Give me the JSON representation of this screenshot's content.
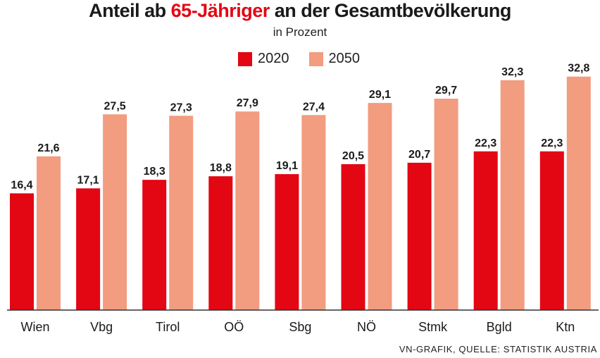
{
  "title_pre": "Anteil ab ",
  "title_hl": "65-Jähriger",
  "title_post": " an der Gesamtbevölkerung",
  "subtitle": "in Prozent",
  "source": "VN-GRAFIK, QUELLE: STATISTIK AUSTRIA",
  "colors": {
    "s2020": "#e30613",
    "s2050": "#f29c80",
    "accent": "#e30613"
  },
  "chart_data": {
    "type": "bar",
    "title": "Anteil ab 65-Jähriger an der Gesamtbevölkerung",
    "subtitle": "in Prozent",
    "categories": [
      "Wien",
      "Vbg",
      "Tirol",
      "OÖ",
      "Sbg",
      "NÖ",
      "Stmk",
      "Bgld",
      "Ktn"
    ],
    "series": [
      {
        "name": "2020",
        "values": [
          16.4,
          17.1,
          18.3,
          18.8,
          19.1,
          20.5,
          20.7,
          22.3,
          22.3
        ],
        "labels": [
          "16,4",
          "17,1",
          "18,3",
          "18,8",
          "19,1",
          "20,5",
          "20,7",
          "22,3",
          "22,3"
        ]
      },
      {
        "name": "2050",
        "values": [
          21.6,
          27.5,
          27.3,
          27.9,
          27.4,
          29.1,
          29.7,
          32.3,
          32.8
        ],
        "labels": [
          "21,6",
          "27,5",
          "27,3",
          "27,9",
          "27,4",
          "29,1",
          "29,7",
          "32,3",
          "32,8"
        ]
      }
    ],
    "xlabel": "",
    "ylabel": "",
    "ylim": [
      0,
      33
    ],
    "grid": false,
    "legend": "top-center"
  }
}
